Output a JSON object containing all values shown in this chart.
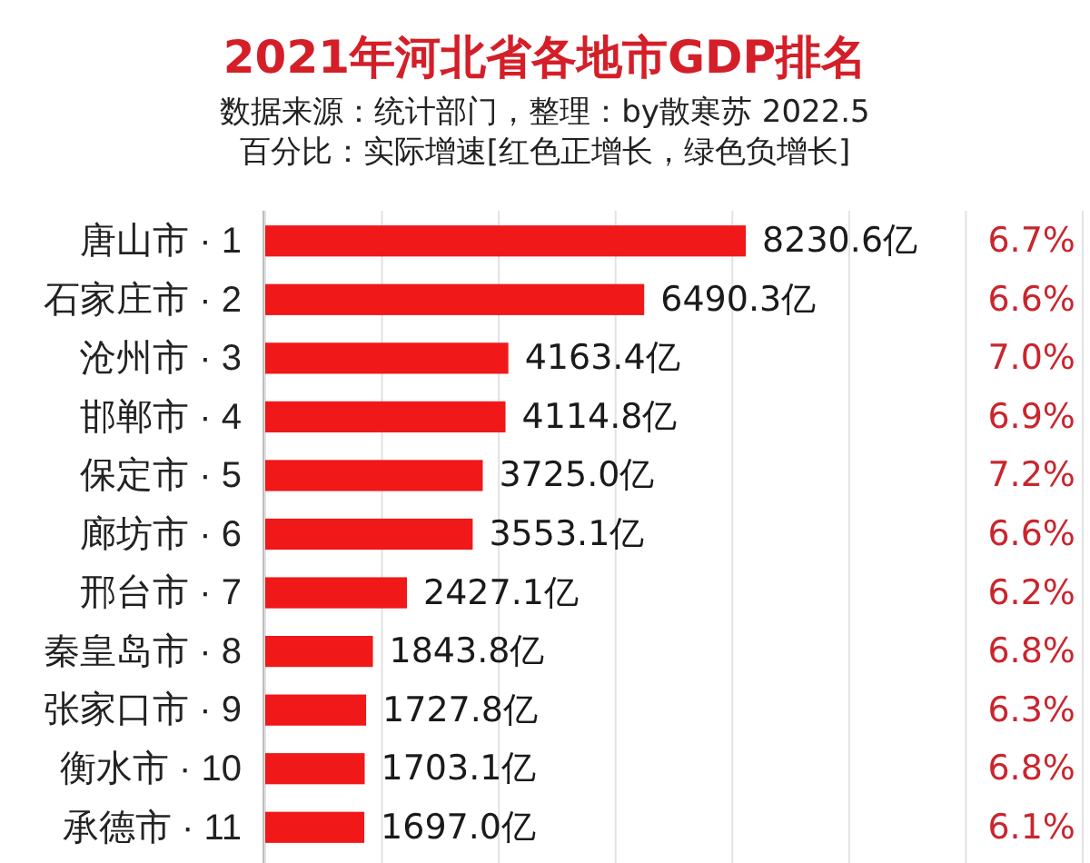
{
  "chart_data": {
    "type": "bar",
    "orientation": "horizontal",
    "title": "2021年河北省各地市GDP排名",
    "subtitle": "数据来源：统计部门，整理：by散寒苏 2022.5",
    "categories": [
      "唐山市 · 1",
      "石家庄市 · 2",
      "沧州市 · 3",
      "邯郸市 · 4",
      "保定市 · 5",
      "廊坊市 · 6",
      "邢台市 · 7",
      "秦皇岛市 · 8",
      "张家口市 · 9",
      "衡水市 · 10",
      "承德市 · 11"
    ],
    "values": [
      8230.6,
      6490.3,
      4163.4,
      4114.8,
      3725.0,
      3553.1,
      2427.1,
      1843.8,
      1727.8,
      1703.1,
      1697.0
    ],
    "value_labels": [
      "8230.6亿",
      "6490.3亿",
      "4163.4亿",
      "4114.8亿",
      "3725.0亿",
      "3553.1亿",
      "2427.1亿",
      "1843.8亿",
      "1727.8亿",
      "1703.1亿",
      "1697.0亿"
    ],
    "color": "#f01818",
    "xlim": [
      0,
      14000
    ],
    "xticks": [
      {
        "value": 0,
        "label": null
      },
      {
        "value": 2000,
        "label": null
      },
      {
        "value": 4000,
        "label": null
      },
      {
        "value": 6000,
        "label": null
      },
      {
        "value": 8000,
        "label": null
      },
      {
        "value": 10000,
        "label": null
      },
      {
        "value": 12000,
        "label": null
      },
      {
        "value": 14000,
        "label": null
      }
    ],
    "grid": "x",
    "tick_labels": "y",
    "annotations": [
      "百分比：实际增速[红色正增长，绿色负增长]",
      "6.7%",
      "6.6%",
      "7.0%",
      "6.9%",
      "7.2%",
      "6.6%",
      "6.2%",
      "6.8%",
      "6.3%",
      "6.8%",
      "6.1%"
    ]
  }
}
